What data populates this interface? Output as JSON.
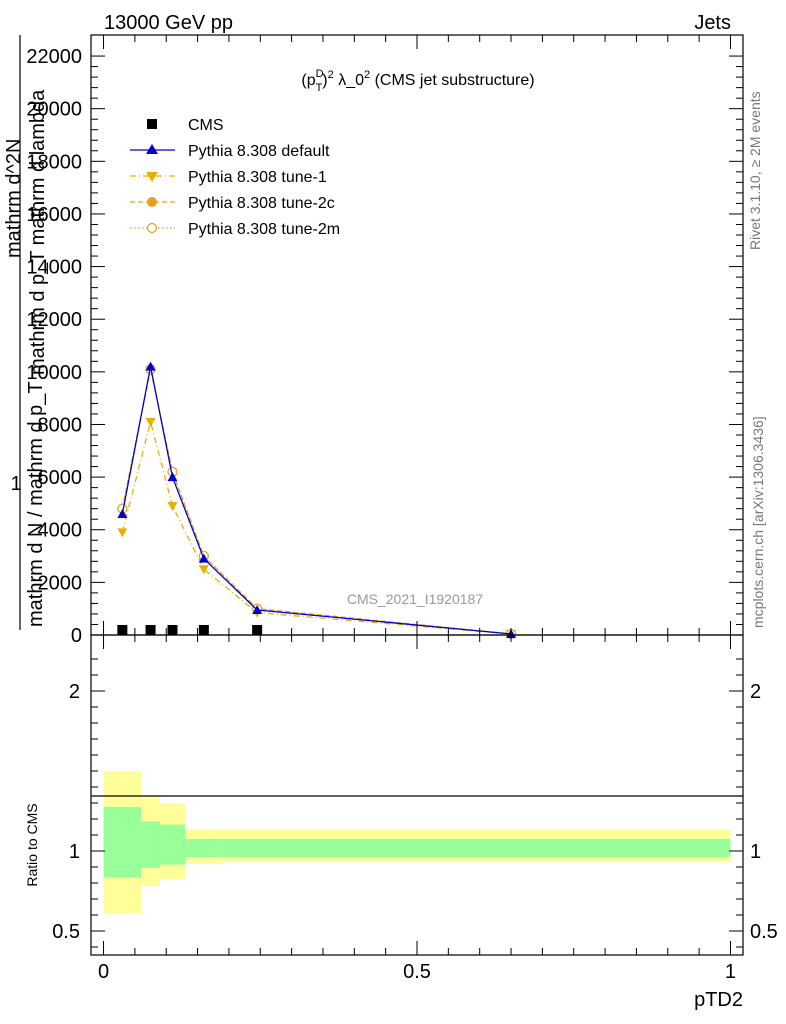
{
  "header": {
    "left": "13000 GeV pp",
    "right": "Jets"
  },
  "title": {
    "prefix": "(p",
    "sup": "D",
    "sub": "T",
    "suffix": ")",
    "exp": "2",
    "lambda": " λ_0",
    "lambda_exp": "2",
    "rest": " (CMS jet substructure)"
  },
  "side_labels": {
    "rivet": "Rivet 3.1.10, ≥ 2M events",
    "mcplots": "mcplots.cern.ch [arXiv:1306.3436]"
  },
  "watermark": "CMS_2021_I1920187",
  "ylabel_main": {
    "one": "1",
    "frac_top": "mathrm d N / mathrm d p_T",
    "frac_bottom": "mathrm d^2N",
    "frac_bottom2": "mathrm d p_T mathrm d lambda"
  },
  "ylabel_ratio": "Ratio to CMS",
  "xlabel": "pTD2",
  "colors": {
    "data": "#000000",
    "default": "#0000cc",
    "tune1": "#e6b000",
    "tune2c": "#e6a020",
    "tune2m": "#e6a020",
    "band_inner": "#99ff99",
    "band_outer": "#ffff99"
  },
  "chart_data": {
    "type": "line",
    "x_range": [
      -0.02,
      1.02
    ],
    "y_range_main": [
      0,
      22800
    ],
    "y_range_ratio": [
      0.35,
      2.35
    ],
    "main_yticks": [
      0,
      2000,
      4000,
      6000,
      8000,
      10000,
      12000,
      14000,
      16000,
      18000,
      20000,
      22000
    ],
    "ratio_yticks": [
      0.5,
      1,
      2
    ],
    "xticks": [
      0,
      0.5,
      1
    ],
    "xtick_labels": [
      "0",
      "0.5",
      "1"
    ],
    "ratio_ytick_labels": [
      "0.5",
      "1",
      "2"
    ],
    "main_ytick_labels": [
      "0",
      "2000",
      "4000",
      "6000",
      "8000",
      "10000",
      "12000",
      "14000",
      "16000",
      "18000",
      "20000",
      "22000"
    ],
    "x": [
      0.03,
      0.075,
      0.11,
      0.16,
      0.245,
      0.65
    ],
    "bin_edges": [
      0.0,
      0.06,
      0.09,
      0.13,
      0.19,
      0.3,
      1.0
    ],
    "series": [
      {
        "name": "CMS",
        "values": [
          55,
          55,
          55,
          40,
          35,
          null
        ]
      },
      {
        "name": "Pythia 8.308 default",
        "values": [
          4600,
          10200,
          6000,
          2900,
          950,
          40
        ]
      },
      {
        "name": "Pythia 8.308 tune-1",
        "values": [
          3900,
          8100,
          4900,
          2500,
          850,
          40
        ]
      },
      {
        "name": "Pythia 8.308 tune-2c",
        "values": [
          4800,
          10100,
          6200,
          3000,
          1000,
          40
        ]
      },
      {
        "name": "Pythia 8.308 tune-2m",
        "values": [
          4800,
          10100,
          6200,
          3000,
          1000,
          40
        ]
      }
    ],
    "ratio_band_inner": {
      "low": [
        0.835,
        0.895,
        0.915,
        0.962,
        0.962,
        0.962
      ],
      "high": [
        1.275,
        1.185,
        1.165,
        1.075,
        1.075,
        1.075
      ]
    },
    "ratio_band_outer": {
      "low": [
        0.61,
        0.78,
        0.825,
        0.925,
        0.93,
        0.93
      ],
      "high": [
        1.5,
        1.35,
        1.3,
        1.135,
        1.135,
        1.135
      ]
    },
    "legend_position": "top-left"
  }
}
